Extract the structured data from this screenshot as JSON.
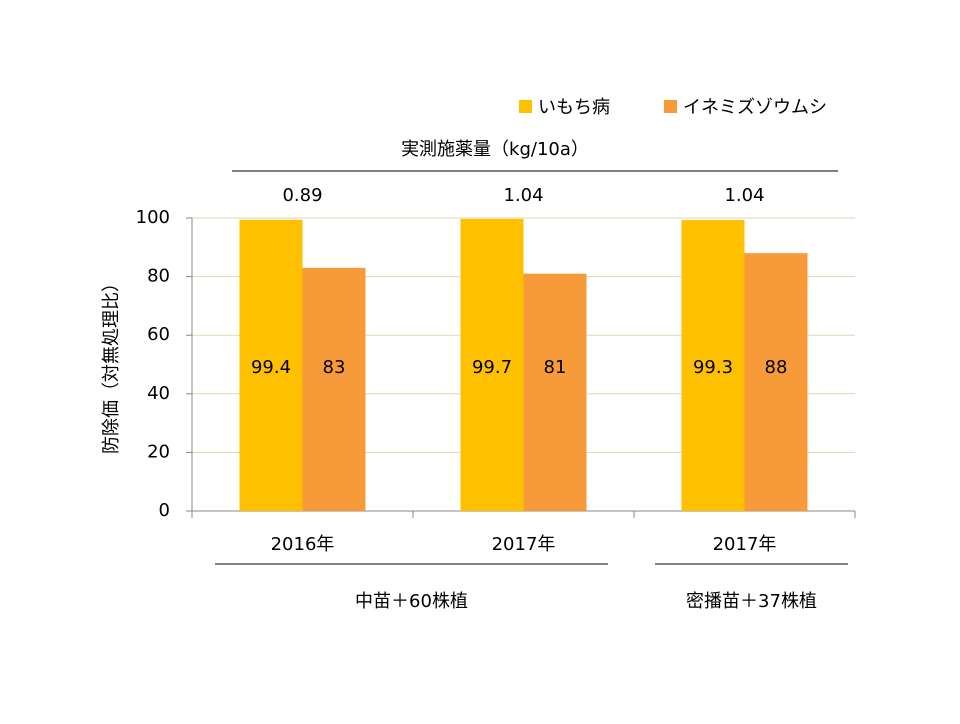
{
  "chart_data": {
    "type": "bar",
    "dose_title": "実測施薬量（kg/10a）",
    "doses": [
      0.89,
      1.04,
      1.04
    ],
    "y_label": "防除価（対無処理比）",
    "categories": [
      "2016年",
      "2017年",
      "2017年"
    ],
    "groups": [
      "中苗＋60株植",
      "密播苗＋37株植"
    ],
    "series": [
      {
        "name": "いもち病",
        "color": "#FFC000",
        "values": [
          99.4,
          99.7,
          99.3
        ]
      },
      {
        "name": "イネミズゾウムシ",
        "color": "#F79A3A",
        "values": [
          83,
          81,
          88
        ]
      }
    ],
    "ylim": [
      0,
      100
    ],
    "yticks": [
      0,
      20,
      40,
      60,
      80,
      100
    ],
    "grid": true
  }
}
